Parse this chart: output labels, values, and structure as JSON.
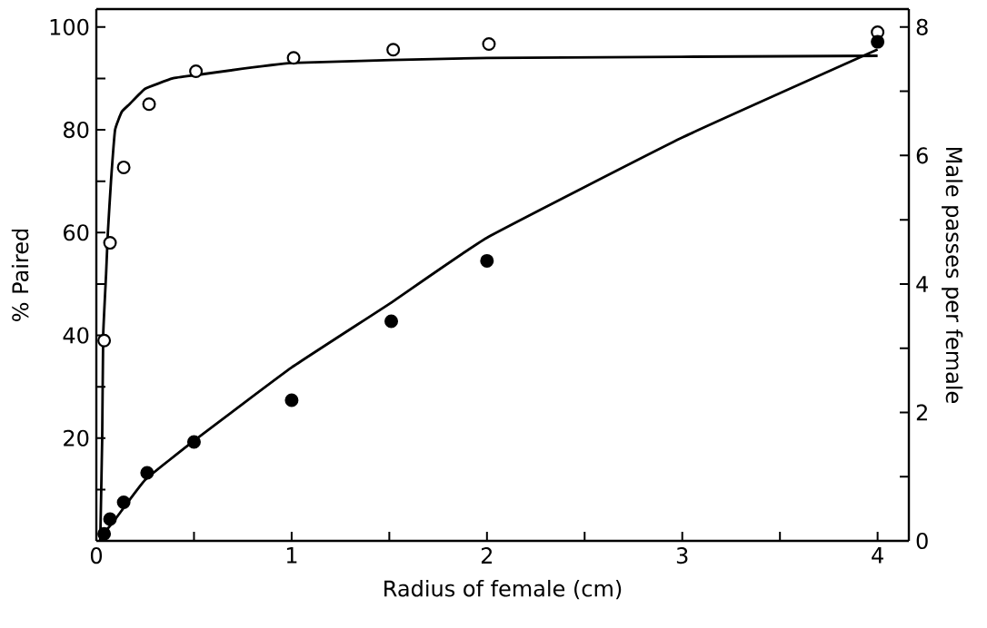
{
  "chart_data": {
    "type": "scatter",
    "xlabel": "Radius of female (cm)",
    "ylabel": "% Paired",
    "y2label": "Male passes per female",
    "xlim": [
      0,
      4.16
    ],
    "ylim": [
      0,
      103.5
    ],
    "y2lim": [
      0,
      8.28
    ],
    "xticks": [
      0,
      {
        "value": 0.5,
        "label": null
      },
      1,
      {
        "value": 1.5,
        "label": null
      },
      2,
      {
        "value": 2.5,
        "label": null
      },
      3,
      {
        "value": 3.5,
        "label": null
      },
      4
    ],
    "yticks": [
      {
        "value": 10,
        "label": null
      },
      20,
      {
        "value": 30,
        "label": null
      },
      40,
      {
        "value": 50,
        "label": null
      },
      60,
      {
        "value": 70,
        "label": null
      },
      80,
      {
        "value": 90,
        "label": null
      },
      100
    ],
    "y2ticks": [
      0,
      {
        "value": 1,
        "label": null
      },
      2,
      {
        "value": 3,
        "label": null
      },
      4,
      {
        "value": 5,
        "label": null
      },
      6,
      {
        "value": 7,
        "label": null
      },
      8
    ],
    "marker": "circle",
    "grid": false,
    "series": [
      {
        "axis": "y",
        "color": "#000000",
        "x": [
          0.04,
          0.07,
          0.14,
          0.27,
          0.51,
          1.01,
          1.52,
          2.01,
          4.0
        ],
        "values": [
          39,
          58,
          72.7,
          85,
          91.4,
          94,
          95.6,
          96.7,
          99
        ]
      },
      {
        "type": "line",
        "axis": "y",
        "color": "#000000",
        "marker": "none",
        "x": [
          0.02,
          0.03,
          0.035,
          0.05,
          0.059,
          0.075,
          0.096,
          0.13,
          0.17,
          0.25,
          0.39,
          0.5,
          1.0,
          2.0,
          4.0
        ],
        "values": [
          0,
          20,
          40,
          52,
          60,
          70,
          80,
          83.5,
          85,
          88,
          90,
          90.6,
          93,
          94,
          94.4
        ]
      },
      {
        "axis": "y2",
        "color": "#000000",
        "x": [
          0.04,
          0.07,
          0.14,
          0.26,
          0.5,
          1.0,
          1.51,
          2.0,
          4.0
        ],
        "values": [
          0.11,
          0.34,
          0.6,
          1.06,
          1.54,
          2.19,
          3.42,
          4.36,
          7.77
        ]
      },
      {
        "type": "line",
        "axis": "y2",
        "color": "#000000",
        "marker": "none",
        "x": [
          0.03,
          0.1,
          0.25,
          0.5,
          1.0,
          1.5,
          2.0,
          3.0,
          4.0
        ],
        "values": [
          0.08,
          0.35,
          0.95,
          1.56,
          2.7,
          3.69,
          4.72,
          6.28,
          7.65
        ]
      }
    ]
  }
}
